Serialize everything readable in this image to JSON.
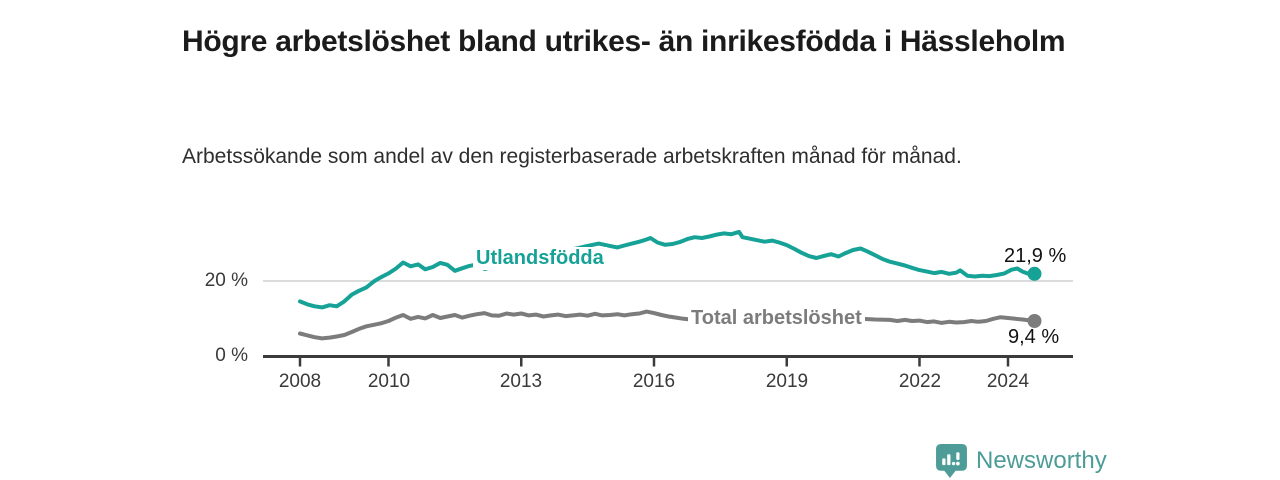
{
  "title": "Högre arbetslöshet bland utrikes- än inrikesfödda i Hässleholm",
  "subtitle": "Arbetssökande som andel av den registerbaserade arbetskraften månad för månad.",
  "colors": {
    "background": "#ffffff",
    "title_text": "#1b1b1b",
    "axis": "#3b3b3b",
    "grid": "#cfcfcf",
    "tick_label": "#3a3a3a",
    "value_label": "#111111"
  },
  "branding": {
    "logo_text": "Newsworthy",
    "logo_color": "#4d9c98",
    "logo_icon": "newsworthy-pin-bar-chart-icon"
  },
  "chart_data": {
    "type": "line",
    "title": "Högre arbetslöshet bland utrikes- än inrikesfödda i Hässleholm",
    "subtitle": "Arbetssökande som andel av den registerbaserade arbetskraften månad för månad.",
    "unit": "%",
    "grid": "single-horizontal-gridline",
    "legend": "inline-labels-on-lines",
    "x_axis": {
      "tick_years": [
        2008,
        2010,
        2013,
        2016,
        2019,
        2022,
        2024
      ],
      "tick_labels": [
        "2008",
        "2010",
        "2013",
        "2016",
        "2019",
        "2022",
        "2024"
      ],
      "range": [
        2007.2,
        2025.5
      ]
    },
    "y_axis": {
      "ticks": [
        0,
        20
      ],
      "tick_labels": [
        "0 %",
        "20 %"
      ],
      "gridlines": [
        20
      ],
      "range": [
        0,
        35
      ]
    },
    "series": [
      {
        "name": "Utlandsfödda",
        "color": "#16a296",
        "end_label": "21,9 %",
        "end_value": 21.9,
        "points": [
          [
            2008.0,
            14.6
          ],
          [
            2008.17,
            13.8
          ],
          [
            2008.33,
            13.3
          ],
          [
            2008.5,
            13.0
          ],
          [
            2008.67,
            13.6
          ],
          [
            2008.83,
            13.3
          ],
          [
            2009.0,
            14.6
          ],
          [
            2009.17,
            16.4
          ],
          [
            2009.33,
            17.4
          ],
          [
            2009.5,
            18.3
          ],
          [
            2009.67,
            19.9
          ],
          [
            2009.83,
            21.0
          ],
          [
            2010.0,
            22.0
          ],
          [
            2010.17,
            23.3
          ],
          [
            2010.33,
            24.9
          ],
          [
            2010.5,
            23.9
          ],
          [
            2010.67,
            24.4
          ],
          [
            2010.83,
            23.1
          ],
          [
            2011.0,
            23.7
          ],
          [
            2011.17,
            24.8
          ],
          [
            2011.33,
            24.3
          ],
          [
            2011.5,
            22.7
          ],
          [
            2011.67,
            23.4
          ],
          [
            2011.83,
            24.0
          ],
          [
            2012.0,
            24.4
          ],
          [
            2012.17,
            23.2
          ],
          [
            2012.33,
            23.6
          ],
          [
            2012.5,
            24.7
          ],
          [
            2012.67,
            25.3
          ],
          [
            2012.83,
            25.8
          ],
          [
            2013.0,
            26.0
          ],
          [
            2013.25,
            26.4
          ],
          [
            2013.5,
            27.0
          ],
          [
            2013.75,
            27.6
          ],
          [
            2014.0,
            28.1
          ],
          [
            2014.25,
            28.6
          ],
          [
            2014.5,
            29.3
          ],
          [
            2014.75,
            29.9
          ],
          [
            2015.0,
            29.3
          ],
          [
            2015.17,
            28.9
          ],
          [
            2015.33,
            29.4
          ],
          [
            2015.5,
            29.9
          ],
          [
            2015.67,
            30.4
          ],
          [
            2015.83,
            31.0
          ],
          [
            2015.92,
            31.4
          ],
          [
            2016.08,
            30.2
          ],
          [
            2016.25,
            29.6
          ],
          [
            2016.42,
            29.8
          ],
          [
            2016.58,
            30.3
          ],
          [
            2016.75,
            31.1
          ],
          [
            2016.92,
            31.6
          ],
          [
            2017.08,
            31.4
          ],
          [
            2017.25,
            31.8
          ],
          [
            2017.42,
            32.3
          ],
          [
            2017.58,
            32.6
          ],
          [
            2017.75,
            32.4
          ],
          [
            2017.92,
            33.0
          ],
          [
            2018.0,
            31.6
          ],
          [
            2018.17,
            31.2
          ],
          [
            2018.33,
            30.8
          ],
          [
            2018.5,
            30.4
          ],
          [
            2018.67,
            30.7
          ],
          [
            2018.83,
            30.2
          ],
          [
            2019.0,
            29.5
          ],
          [
            2019.17,
            28.5
          ],
          [
            2019.33,
            27.5
          ],
          [
            2019.5,
            26.6
          ],
          [
            2019.67,
            26.1
          ],
          [
            2019.83,
            26.6
          ],
          [
            2020.0,
            27.1
          ],
          [
            2020.17,
            26.5
          ],
          [
            2020.33,
            27.4
          ],
          [
            2020.5,
            28.2
          ],
          [
            2020.67,
            28.6
          ],
          [
            2020.83,
            27.8
          ],
          [
            2021.0,
            26.8
          ],
          [
            2021.17,
            25.8
          ],
          [
            2021.33,
            25.1
          ],
          [
            2021.5,
            24.6
          ],
          [
            2021.67,
            24.1
          ],
          [
            2021.83,
            23.5
          ],
          [
            2022.0,
            22.9
          ],
          [
            2022.17,
            22.5
          ],
          [
            2022.33,
            22.1
          ],
          [
            2022.5,
            22.4
          ],
          [
            2022.67,
            21.9
          ],
          [
            2022.83,
            22.2
          ],
          [
            2022.92,
            22.8
          ],
          [
            2023.08,
            21.4
          ],
          [
            2023.25,
            21.2
          ],
          [
            2023.42,
            21.4
          ],
          [
            2023.58,
            21.3
          ],
          [
            2023.75,
            21.6
          ],
          [
            2023.92,
            22.0
          ],
          [
            2024.08,
            23.0
          ],
          [
            2024.21,
            23.3
          ],
          [
            2024.33,
            22.5
          ],
          [
            2024.46,
            21.9
          ],
          [
            2024.6,
            21.9
          ]
        ]
      },
      {
        "name": "Total arbetslöshet",
        "color": "#7c7c7c",
        "end_label": "9,4 %",
        "end_value": 9.4,
        "points": [
          [
            2008.0,
            6.1
          ],
          [
            2008.17,
            5.6
          ],
          [
            2008.33,
            5.1
          ],
          [
            2008.5,
            4.8
          ],
          [
            2008.67,
            5.0
          ],
          [
            2008.83,
            5.3
          ],
          [
            2009.0,
            5.7
          ],
          [
            2009.17,
            6.5
          ],
          [
            2009.33,
            7.3
          ],
          [
            2009.5,
            8.0
          ],
          [
            2009.67,
            8.4
          ],
          [
            2009.83,
            8.8
          ],
          [
            2010.0,
            9.4
          ],
          [
            2010.17,
            10.3
          ],
          [
            2010.33,
            11.0
          ],
          [
            2010.5,
            10.0
          ],
          [
            2010.67,
            10.5
          ],
          [
            2010.83,
            10.1
          ],
          [
            2011.0,
            11.0
          ],
          [
            2011.17,
            10.2
          ],
          [
            2011.33,
            10.6
          ],
          [
            2011.5,
            11.0
          ],
          [
            2011.67,
            10.3
          ],
          [
            2011.83,
            10.8
          ],
          [
            2012.0,
            11.2
          ],
          [
            2012.17,
            11.5
          ],
          [
            2012.33,
            10.9
          ],
          [
            2012.5,
            10.8
          ],
          [
            2012.67,
            11.4
          ],
          [
            2012.83,
            11.1
          ],
          [
            2013.0,
            11.4
          ],
          [
            2013.17,
            10.9
          ],
          [
            2013.33,
            11.1
          ],
          [
            2013.5,
            10.6
          ],
          [
            2013.67,
            10.9
          ],
          [
            2013.83,
            11.1
          ],
          [
            2014.0,
            10.7
          ],
          [
            2014.17,
            10.9
          ],
          [
            2014.33,
            11.1
          ],
          [
            2014.5,
            10.8
          ],
          [
            2014.67,
            11.3
          ],
          [
            2014.83,
            10.9
          ],
          [
            2015.0,
            11.0
          ],
          [
            2015.17,
            11.2
          ],
          [
            2015.33,
            10.9
          ],
          [
            2015.5,
            11.2
          ],
          [
            2015.67,
            11.4
          ],
          [
            2015.83,
            11.9
          ],
          [
            2016.0,
            11.5
          ],
          [
            2016.17,
            11.0
          ],
          [
            2016.33,
            10.6
          ],
          [
            2016.5,
            10.3
          ],
          [
            2016.67,
            10.0
          ],
          [
            2016.83,
            9.8
          ],
          [
            2017.0,
            9.7
          ],
          [
            2017.5,
            9.9
          ],
          [
            2018.0,
            10.0
          ],
          [
            2018.5,
            9.8
          ],
          [
            2019.0,
            9.6
          ],
          [
            2019.5,
            9.5
          ],
          [
            2020.0,
            9.8
          ],
          [
            2020.5,
            10.1
          ],
          [
            2021.0,
            9.8
          ],
          [
            2021.33,
            9.7
          ],
          [
            2021.5,
            9.4
          ],
          [
            2021.67,
            9.7
          ],
          [
            2021.83,
            9.4
          ],
          [
            2022.0,
            9.5
          ],
          [
            2022.17,
            9.1
          ],
          [
            2022.33,
            9.3
          ],
          [
            2022.5,
            8.9
          ],
          [
            2022.67,
            9.2
          ],
          [
            2022.83,
            9.0
          ],
          [
            2023.0,
            9.1
          ],
          [
            2023.17,
            9.4
          ],
          [
            2023.33,
            9.2
          ],
          [
            2023.5,
            9.4
          ],
          [
            2023.67,
            10.0
          ],
          [
            2023.83,
            10.4
          ],
          [
            2024.0,
            10.2
          ],
          [
            2024.17,
            10.0
          ],
          [
            2024.33,
            9.8
          ],
          [
            2024.6,
            9.4
          ]
        ]
      }
    ]
  }
}
